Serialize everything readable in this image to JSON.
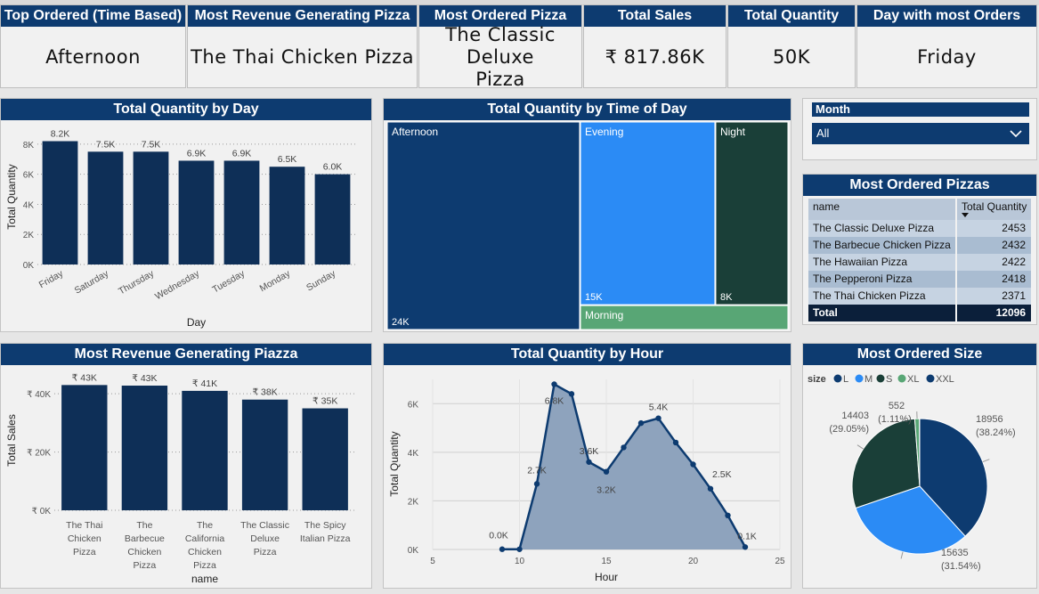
{
  "kpis": [
    {
      "title": "Top Ordered (Time Based)",
      "value": "Afternoon"
    },
    {
      "title": "Most Revenue Generating Pizza",
      "value": "The Thai Chicken Pizza"
    },
    {
      "title": "Most Ordered Pizza",
      "value": "The Classic Deluxe Pizza"
    },
    {
      "title": "Total Sales",
      "value": "₹ 817.86K"
    },
    {
      "title": "Total Quantity",
      "value": "50K"
    },
    {
      "title": "Day with most Orders",
      "value": "Friday"
    }
  ],
  "slicer": {
    "label": "Month",
    "value": "All"
  },
  "table": {
    "title": "Most Ordered Pizzas",
    "headers": [
      "name",
      "Total Quantity"
    ],
    "rows": [
      [
        "The Classic Deluxe Pizza",
        "2453"
      ],
      [
        "The Barbecue Chicken Pizza",
        "2432"
      ],
      [
        "The Hawaiian Pizza",
        "2422"
      ],
      [
        "The Pepperoni Pizza",
        "2418"
      ],
      [
        "The Thai Chicken Pizza",
        "2371"
      ]
    ],
    "total_label": "Total",
    "total_value": "12096"
  },
  "colors": {
    "navy": "#0d3b70",
    "bar": "#0e2f57",
    "blue": "#2b8bf5",
    "darkgreen": "#1a3f38",
    "green": "#58a675",
    "area": "#8ea3bd"
  },
  "chart_data": [
    {
      "id": "qty_by_day",
      "type": "bar",
      "title": "Total Quantity by Day",
      "xlabel": "Day",
      "ylabel": "Total Quantity",
      "categories": [
        "Friday",
        "Saturday",
        "Thursday",
        "Wednesday",
        "Tuesday",
        "Monday",
        "Sunday"
      ],
      "values": [
        8200,
        7500,
        7500,
        6900,
        6900,
        6500,
        6000
      ],
      "data_labels": [
        "8.2K",
        "7.5K",
        "7.5K",
        "6.9K",
        "6.9K",
        "6.5K",
        "6.0K"
      ],
      "yticks": [
        "0K",
        "2K",
        "4K",
        "6K",
        "8K"
      ],
      "ylim": [
        0,
        9000
      ]
    },
    {
      "id": "qty_by_time",
      "type": "treemap",
      "title": "Total Quantity by Time of Day",
      "items": [
        {
          "name": "Afternoon",
          "value": 24000,
          "label": "24K"
        },
        {
          "name": "Evening",
          "value": 15000,
          "label": "15K"
        },
        {
          "name": "Night",
          "value": 8000,
          "label": "8K"
        },
        {
          "name": "Morning",
          "value": 3000,
          "label": ""
        }
      ]
    },
    {
      "id": "revenue_by_pizza",
      "type": "bar",
      "title": "Most Revenue Generating Piazza",
      "xlabel": "name",
      "ylabel": "Total Sales",
      "categories": [
        "The Thai Chicken Pizza",
        "The Barbecue Chicken Pizza",
        "The California Chicken Pizza",
        "The Classic Deluxe Pizza",
        "The Spicy Italian Pizza"
      ],
      "category_lines": [
        [
          "The Thai",
          "Chicken",
          "Pizza"
        ],
        [
          "The",
          "Barbecue",
          "Chicken",
          "Pizza"
        ],
        [
          "The",
          "California",
          "Chicken",
          "Pizza"
        ],
        [
          "The Classic",
          "Deluxe",
          "Pizza"
        ],
        [
          "The Spicy",
          "Italian Pizza"
        ]
      ],
      "values": [
        43000,
        42800,
        41000,
        38000,
        35000
      ],
      "data_labels": [
        "₹ 43K",
        "₹ 43K",
        "₹ 41K",
        "₹ 38K",
        "₹ 35K"
      ],
      "yticks": [
        "₹ 0K",
        "₹ 20K",
        "₹ 40K"
      ],
      "ylim": [
        0,
        48000
      ]
    },
    {
      "id": "qty_by_hour",
      "type": "area",
      "title": "Total Quantity by Hour",
      "xlabel": "Hour",
      "ylabel": "Total Quantity",
      "x": [
        9,
        10,
        11,
        12,
        13,
        14,
        15,
        16,
        17,
        18,
        19,
        20,
        21,
        22,
        23
      ],
      "y": [
        10,
        8,
        2700,
        6800,
        6400,
        3600,
        3200,
        4200,
        5200,
        5400,
        4400,
        3500,
        2500,
        1400,
        100
      ],
      "data_labels": [
        {
          "x": 9,
          "text": "0.0K"
        },
        {
          "x": 11,
          "text": "2.7K"
        },
        {
          "x": 12,
          "text": "6.8K"
        },
        {
          "x": 14,
          "text": "3.6K"
        },
        {
          "x": 15,
          "text": "3.2K"
        },
        {
          "x": 18,
          "text": "5.4K"
        },
        {
          "x": 21,
          "text": "2.5K"
        },
        {
          "x": 23,
          "text": "0.1K"
        }
      ],
      "xticks": [
        "5",
        "10",
        "15",
        "20",
        "25"
      ],
      "yticks": [
        "0K",
        "2K",
        "4K",
        "6K"
      ],
      "xlim": [
        5,
        25
      ],
      "ylim": [
        0,
        7000
      ]
    },
    {
      "id": "size_pie",
      "type": "pie",
      "title": "Most Ordered Size",
      "legend_title": "size",
      "slices": [
        {
          "name": "L",
          "value": 18956,
          "pct": "(38.24%)",
          "color": "#0d3b70"
        },
        {
          "name": "M",
          "value": 15635,
          "pct": "(31.54%)",
          "color": "#2b8bf5"
        },
        {
          "name": "S",
          "value": 14403,
          "pct": "(29.05%)",
          "color": "#1a3f38"
        },
        {
          "name": "XL",
          "value": 552,
          "pct": "(1.11%)",
          "color": "#58a675"
        },
        {
          "name": "XXL",
          "value": 28,
          "pct": "",
          "color": "#0d3b70"
        }
      ]
    }
  ]
}
